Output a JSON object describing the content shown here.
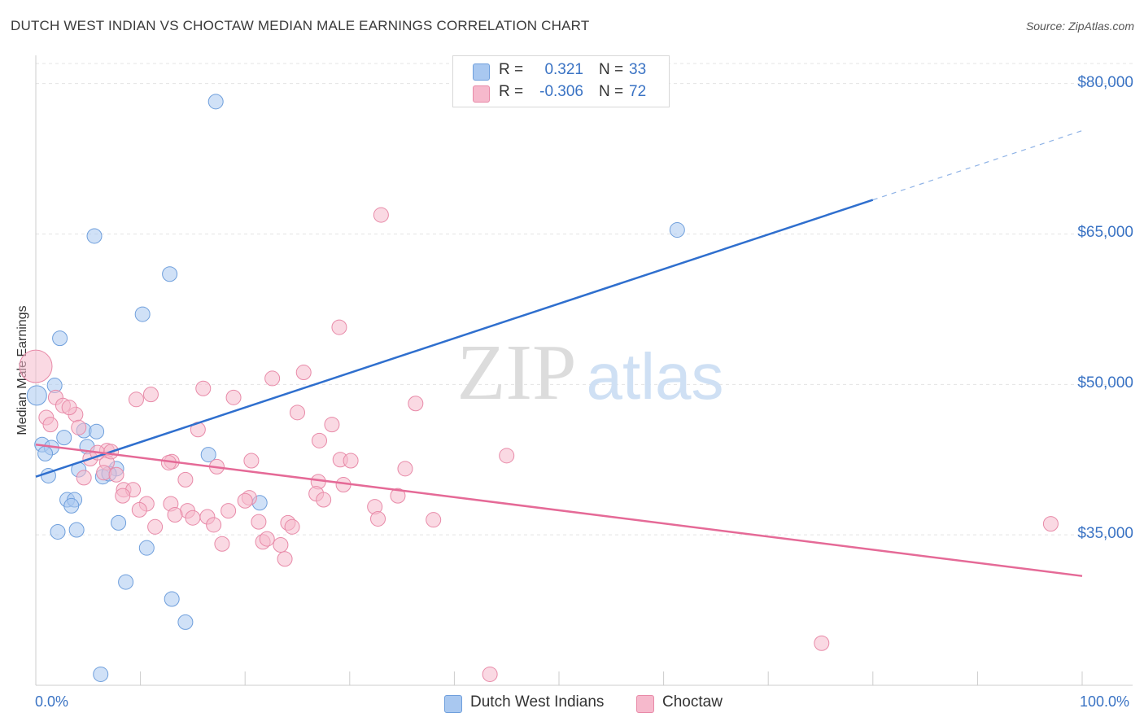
{
  "header": {
    "title": "DUTCH WEST INDIAN VS CHOCTAW MEDIAN MALE EARNINGS CORRELATION CHART",
    "source": "Source: ZipAtlas.com"
  },
  "watermark": {
    "zip": "ZIP",
    "atlas": "atlas"
  },
  "legend": {
    "rows": [
      {
        "r_label": "R =",
        "r_value": "0.321",
        "n_label": "N =",
        "n_value": "33",
        "color": "#a9c8f0"
      },
      {
        "r_label": "R =",
        "r_value": "-0.306",
        "n_label": "N =",
        "n_value": "72",
        "color": "#f6b9cc"
      }
    ]
  },
  "bottom_legend": [
    {
      "label": "Dutch West Indians",
      "color": "#a9c8f0"
    },
    {
      "label": "Choctaw",
      "color": "#f6b9cc"
    }
  ],
  "chart_data": {
    "type": "scatter",
    "title": "DUTCH WEST INDIAN VS CHOCTAW MEDIAN MALE EARNINGS CORRELATION CHART",
    "xlabel": "",
    "ylabel": "Median Male Earnings",
    "xlim": [
      0,
      100
    ],
    "ylim": [
      20000,
      82000
    ],
    "x_tick_labels": [
      "0.0%",
      "100.0%"
    ],
    "y_ticks": [
      35000,
      50000,
      65000,
      80000
    ],
    "y_tick_labels": [
      "$35,000",
      "$50,000",
      "$65,000",
      "$80,000"
    ],
    "grid": true,
    "series": [
      {
        "name": "Dutch West Indians",
        "color": "#a9c8f0",
        "stroke": "#6f9fdc",
        "points": [
          [
            17.2,
            78200
          ],
          [
            5.6,
            64800
          ],
          [
            12.8,
            61000
          ],
          [
            10.2,
            57000
          ],
          [
            2.3,
            54600
          ],
          [
            1.8,
            49900
          ],
          [
            0.1,
            48900
          ],
          [
            4.6,
            45400
          ],
          [
            5.8,
            45300
          ],
          [
            2.7,
            44700
          ],
          [
            0.6,
            44000
          ],
          [
            1.5,
            43700
          ],
          [
            4.9,
            43800
          ],
          [
            0.9,
            43100
          ],
          [
            16.5,
            43000
          ],
          [
            7.7,
            41600
          ],
          [
            4.1,
            41500
          ],
          [
            1.2,
            40900
          ],
          [
            6.4,
            40800
          ],
          [
            7.0,
            41100
          ],
          [
            3.0,
            38500
          ],
          [
            3.7,
            38500
          ],
          [
            21.4,
            38200
          ],
          [
            3.4,
            37900
          ],
          [
            7.9,
            36200
          ],
          [
            2.1,
            35300
          ],
          [
            3.9,
            35500
          ],
          [
            10.6,
            33700
          ],
          [
            8.6,
            30300
          ],
          [
            13.0,
            28600
          ],
          [
            14.3,
            26300
          ],
          [
            6.2,
            21100
          ],
          [
            61.3,
            65400
          ]
        ],
        "trend": {
          "x0": 0,
          "y0": 40800,
          "x1": 80,
          "y1": 68400,
          "x_dash_end": 100,
          "y_dash_end": 75300
        }
      },
      {
        "name": "Choctaw",
        "color": "#f6b9cc",
        "stroke": "#e88aa8",
        "points": [
          [
            33.0,
            66900
          ],
          [
            29.0,
            55700
          ],
          [
            0.0,
            51800
          ],
          [
            25.6,
            51200
          ],
          [
            22.6,
            50600
          ],
          [
            16.0,
            49600
          ],
          [
            11.0,
            49000
          ],
          [
            1.9,
            48700
          ],
          [
            9.6,
            48500
          ],
          [
            18.9,
            48700
          ],
          [
            2.6,
            47900
          ],
          [
            36.3,
            48100
          ],
          [
            3.8,
            47000
          ],
          [
            25.0,
            47200
          ],
          [
            1.0,
            46700
          ],
          [
            28.3,
            46000
          ],
          [
            4.1,
            45700
          ],
          [
            15.5,
            45500
          ],
          [
            1.4,
            46000
          ],
          [
            27.1,
            44400
          ],
          [
            6.8,
            43400
          ],
          [
            45.0,
            42900
          ],
          [
            5.2,
            42600
          ],
          [
            29.1,
            42500
          ],
          [
            30.1,
            42400
          ],
          [
            13.0,
            42300
          ],
          [
            6.8,
            42200
          ],
          [
            20.6,
            42400
          ],
          [
            12.7,
            42200
          ],
          [
            17.3,
            41800
          ],
          [
            35.3,
            41600
          ],
          [
            6.5,
            41200
          ],
          [
            7.7,
            41000
          ],
          [
            4.6,
            40700
          ],
          [
            14.3,
            40500
          ],
          [
            27.0,
            40300
          ],
          [
            29.4,
            40000
          ],
          [
            8.4,
            39500
          ],
          [
            9.3,
            39500
          ],
          [
            26.8,
            39100
          ],
          [
            34.6,
            38900
          ],
          [
            8.3,
            38900
          ],
          [
            20.4,
            38700
          ],
          [
            27.5,
            38500
          ],
          [
            20.0,
            38400
          ],
          [
            10.6,
            38100
          ],
          [
            12.9,
            38100
          ],
          [
            32.4,
            37800
          ],
          [
            18.4,
            37400
          ],
          [
            9.9,
            37500
          ],
          [
            14.5,
            37400
          ],
          [
            13.3,
            37000
          ],
          [
            16.4,
            36800
          ],
          [
            15.0,
            36700
          ],
          [
            38.0,
            36500
          ],
          [
            32.7,
            36600
          ],
          [
            21.3,
            36300
          ],
          [
            24.1,
            36200
          ],
          [
            17.0,
            36000
          ],
          [
            11.4,
            35800
          ],
          [
            24.5,
            35800
          ],
          [
            97.0,
            36100
          ],
          [
            21.7,
            34300
          ],
          [
            22.1,
            34600
          ],
          [
            17.8,
            34100
          ],
          [
            23.4,
            34000
          ],
          [
            23.8,
            32600
          ],
          [
            75.1,
            24200
          ],
          [
            43.4,
            21100
          ],
          [
            3.2,
            47700
          ],
          [
            5.9,
            43200
          ],
          [
            7.2,
            43300
          ]
        ],
        "trend": {
          "x0": 0,
          "y0": 44000,
          "x1": 100,
          "y1": 30900
        }
      }
    ]
  }
}
